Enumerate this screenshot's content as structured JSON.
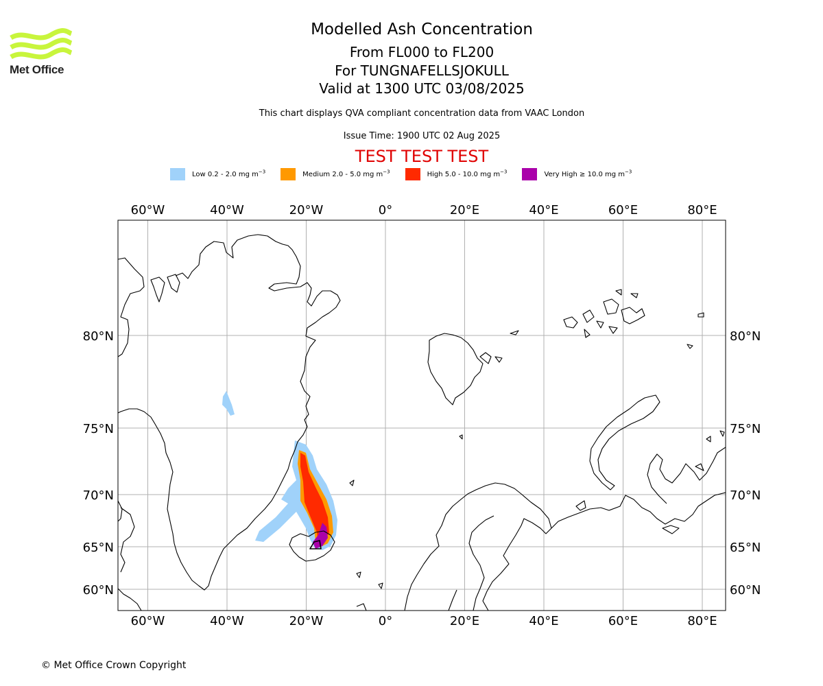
{
  "header": {
    "title": "Modelled Ash Concentration",
    "levels": "From FL000 to FL200",
    "volcano": "For TUNGNAFELLSJOKULL",
    "valid": "Valid at 1300 UTC 03/08/2025",
    "subtitle": "This chart displays QVA compliant concentration data from VAAC London",
    "issue_time": "Issue Time: 1900 UTC 02 Aug 2025",
    "test_banner": "TEST TEST TEST"
  },
  "logo": {
    "text": "Met Office",
    "color": "#c8f53c"
  },
  "legend": [
    {
      "label": "Low 0.2 - 2.0 mg m",
      "unit_exp": "−3",
      "color": "#a0d2fa"
    },
    {
      "label": "Medium 2.0 - 5.0 mg m",
      "unit_exp": "−3",
      "color": "#ff9900"
    },
    {
      "label": "High 5.0 - 10.0 mg m",
      "unit_exp": "−3",
      "color": "#ff2a00"
    },
    {
      "label": "Very High ≥ 10.0 mg m",
      "unit_exp": "−3",
      "color": "#aa00aa"
    }
  ],
  "map": {
    "lon_ticks": [
      {
        "value": -60,
        "label": "60°W"
      },
      {
        "value": -40,
        "label": "40°W"
      },
      {
        "value": -20,
        "label": "20°W"
      },
      {
        "value": 0,
        "label": "0°"
      },
      {
        "value": 20,
        "label": "20°E"
      },
      {
        "value": 40,
        "label": "40°E"
      },
      {
        "value": 60,
        "label": "60°E"
      },
      {
        "value": 80,
        "label": "80°E"
      }
    ],
    "lat_ticks": [
      {
        "value": 80,
        "label": "80°N"
      },
      {
        "value": 75,
        "label": "75°N"
      },
      {
        "value": 70,
        "label": "70°N"
      },
      {
        "value": 65,
        "label": "65°N"
      },
      {
        "value": 60,
        "label": "60°N"
      }
    ],
    "grid": true
  },
  "copyright": "© Met Office Crown Copyright"
}
